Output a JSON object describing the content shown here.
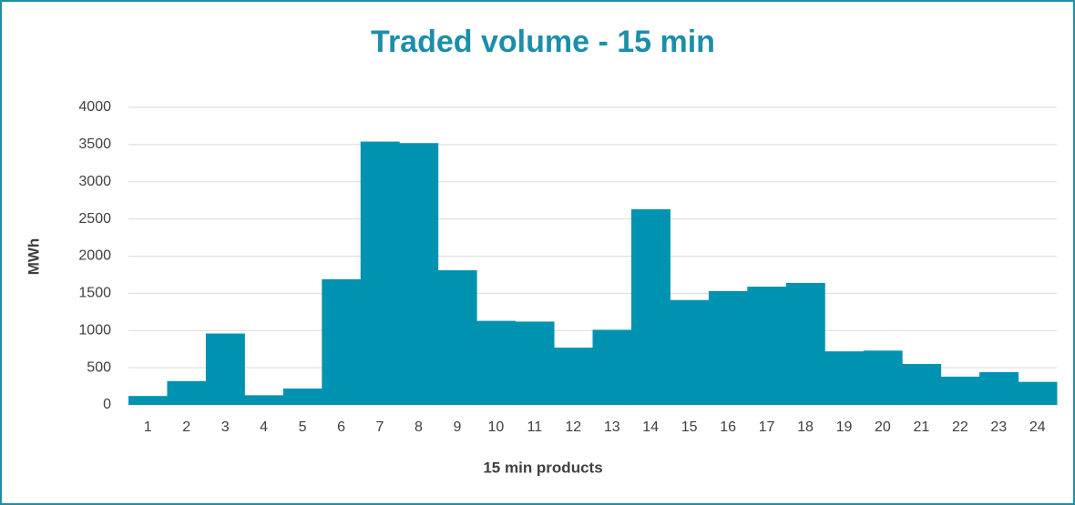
{
  "chart_data": {
    "type": "bar",
    "title": "Traded volume - 15 min",
    "x_label": "15 min products",
    "y_label": "MWh",
    "categories": [
      "1",
      "2",
      "3",
      "4",
      "5",
      "6",
      "7",
      "8",
      "9",
      "10",
      "11",
      "12",
      "13",
      "14",
      "15",
      "16",
      "17",
      "18",
      "19",
      "20",
      "21",
      "22",
      "23",
      "24"
    ],
    "values": [
      120,
      320,
      960,
      130,
      220,
      1690,
      3540,
      3520,
      1810,
      1130,
      1120,
      770,
      1010,
      2630,
      1410,
      1530,
      1590,
      1640,
      720,
      730,
      550,
      380,
      440,
      310
    ],
    "color": "#0093b1",
    "ylim": [
      0,
      4000
    ],
    "yticks": [
      0,
      500,
      1000,
      1500,
      2000,
      2500,
      3000,
      3500,
      4000
    ],
    "grid": true
  }
}
